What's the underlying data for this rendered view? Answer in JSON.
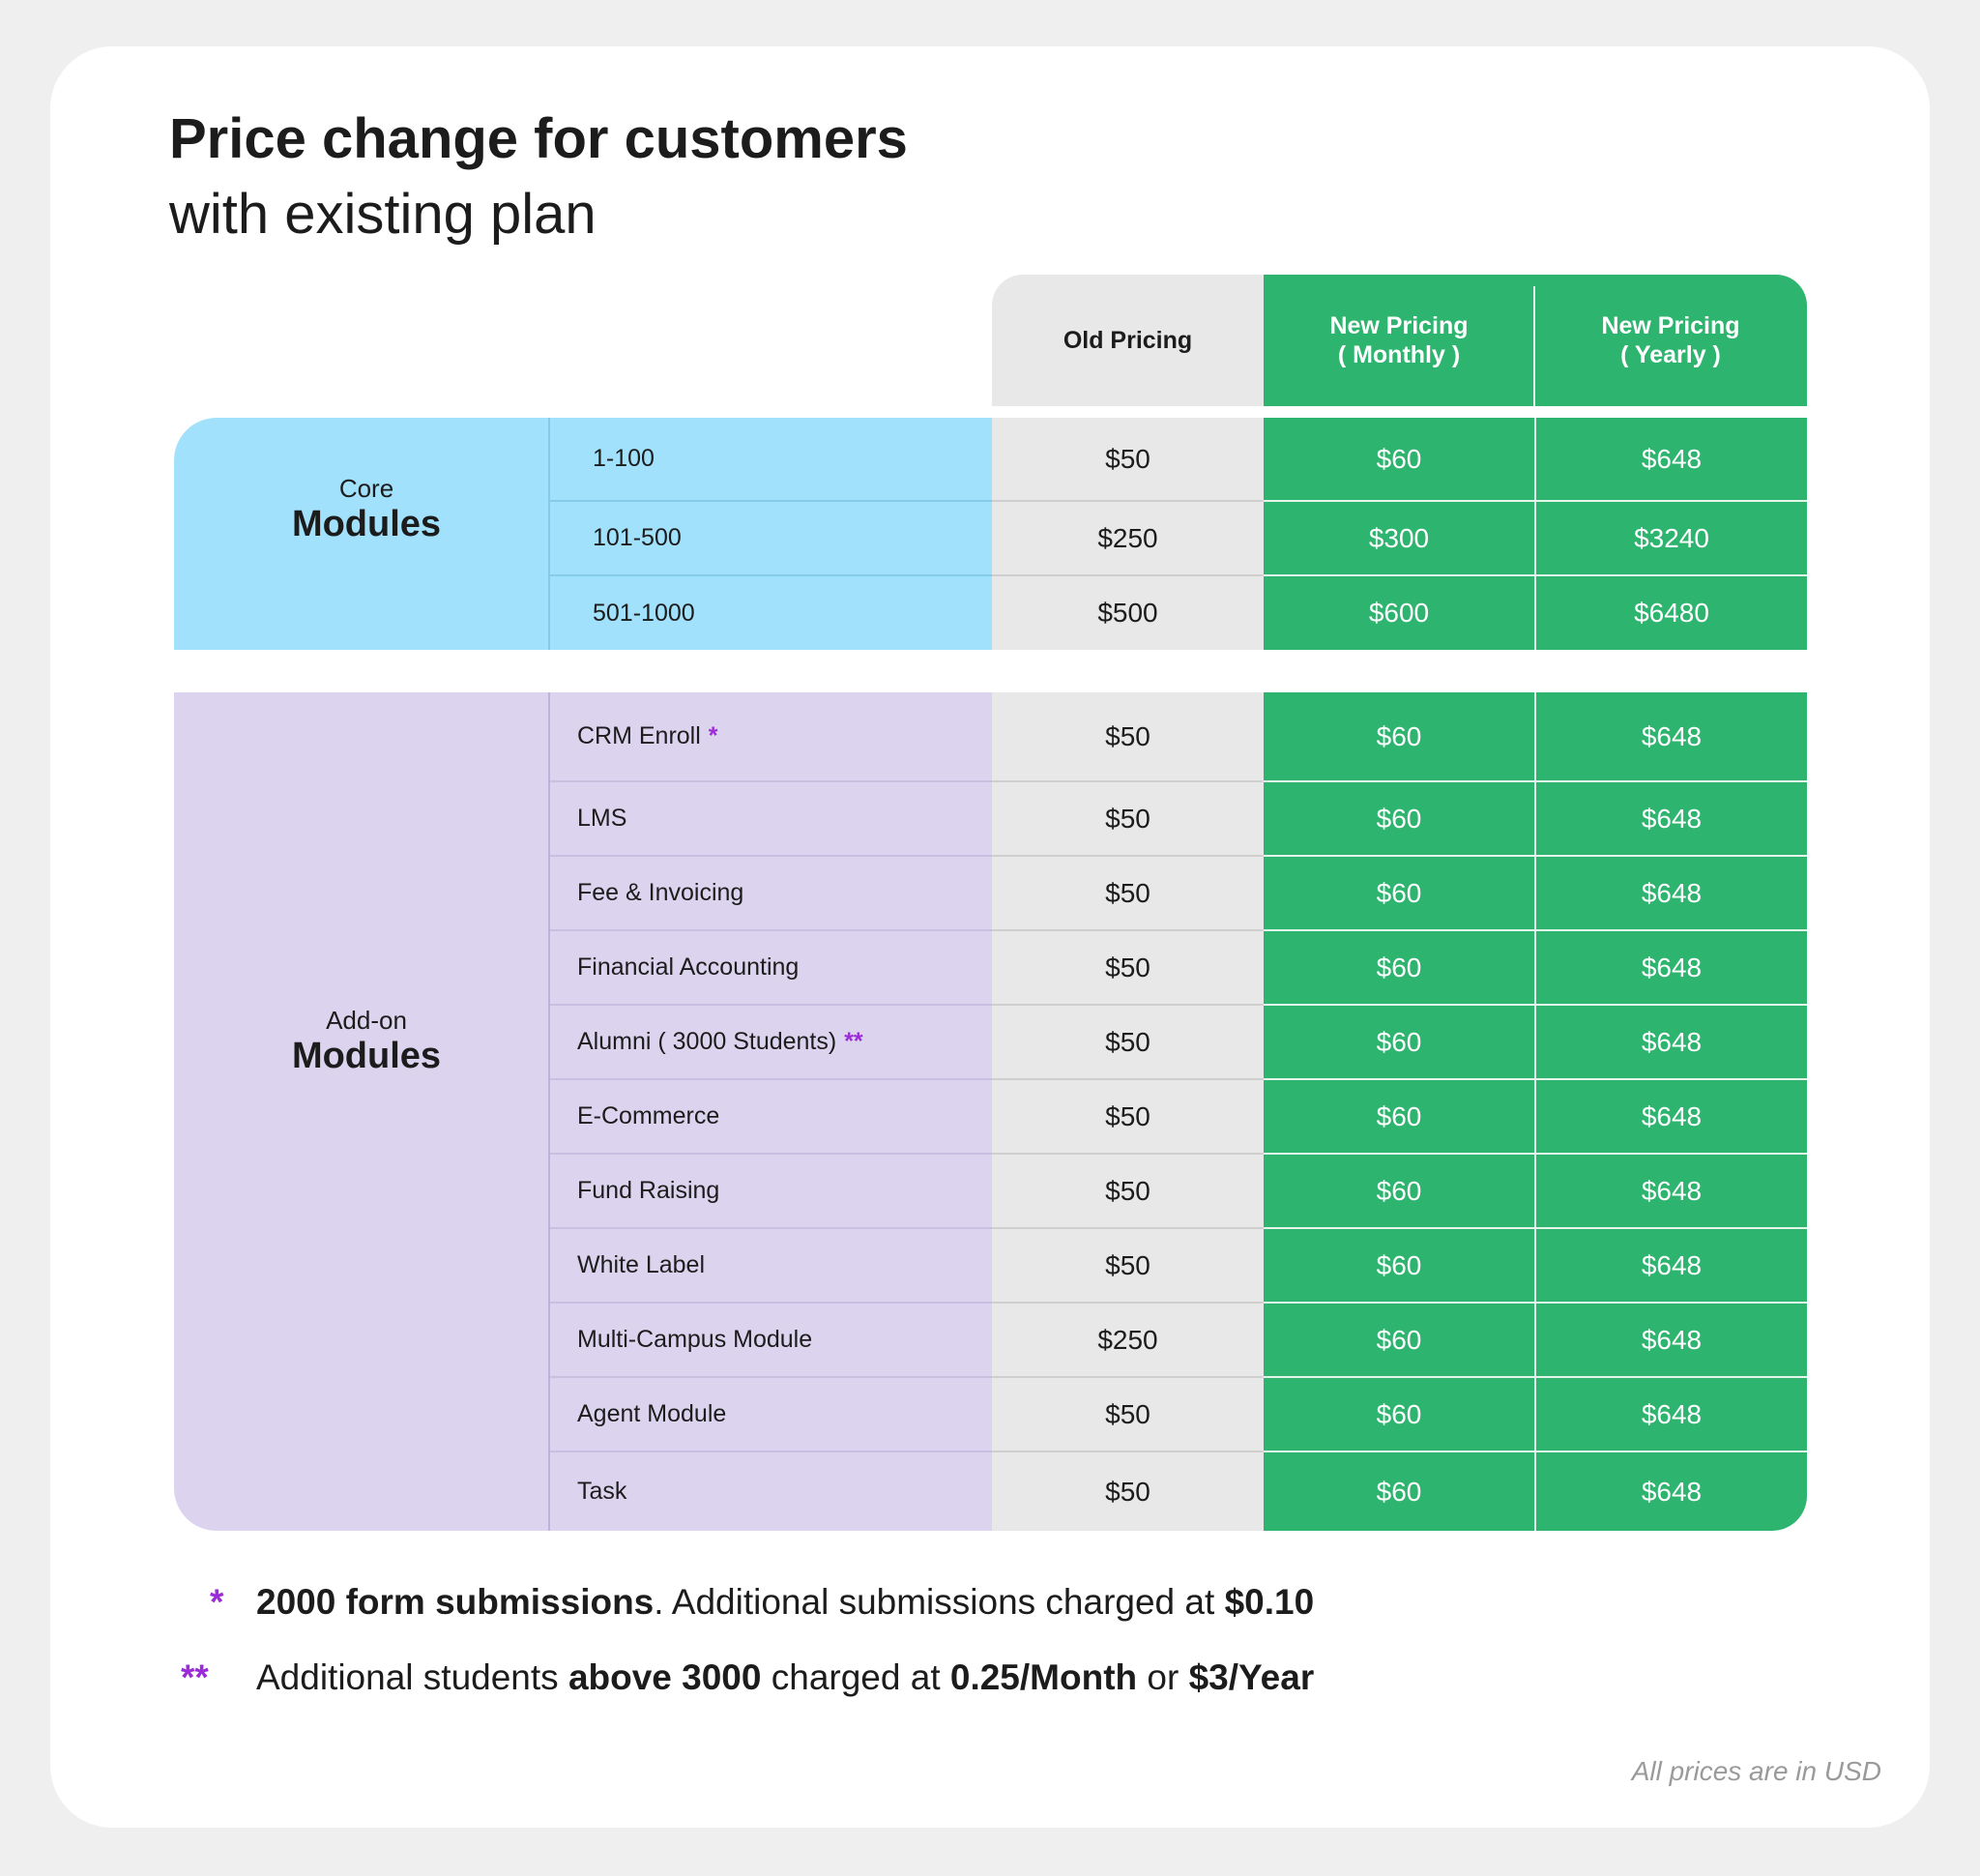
{
  "title": {
    "line1": "Price change for customers",
    "line2": "with existing plan"
  },
  "columns": {
    "old": "Old Pricing",
    "monthly_line1": "New Pricing",
    "monthly_line2": "( Monthly )",
    "yearly_line1": "New Pricing",
    "yearly_line2": "( Yearly )"
  },
  "core": {
    "label_small": "Core",
    "label_big": "Modules",
    "rows": [
      {
        "name": "1-100",
        "old": "$50",
        "monthly": "$60",
        "yearly": "$648"
      },
      {
        "name": "101-500",
        "old": "$250",
        "monthly": "$300",
        "yearly": "$3240"
      },
      {
        "name": "501-1000",
        "old": "$500",
        "monthly": "$600",
        "yearly": "$6480"
      }
    ]
  },
  "addon": {
    "label_small": "Add-on",
    "label_big": "Modules",
    "rows": [
      {
        "name": "CRM Enroll",
        "mark": "*",
        "old": "$50",
        "monthly": "$60",
        "yearly": "$648"
      },
      {
        "name": "LMS",
        "mark": "",
        "old": "$50",
        "monthly": "$60",
        "yearly": "$648"
      },
      {
        "name": "Fee & Invoicing",
        "mark": "",
        "old": "$50",
        "monthly": "$60",
        "yearly": "$648"
      },
      {
        "name": "Financial Accounting",
        "mark": "",
        "old": "$50",
        "monthly": "$60",
        "yearly": "$648"
      },
      {
        "name": "Alumni ( 3000 Students)",
        "mark": "**",
        "old": "$50",
        "monthly": "$60",
        "yearly": "$648"
      },
      {
        "name": "E-Commerce",
        "mark": "",
        "old": "$50",
        "monthly": "$60",
        "yearly": "$648"
      },
      {
        "name": "Fund Raising",
        "mark": "",
        "old": "$50",
        "monthly": "$60",
        "yearly": "$648"
      },
      {
        "name": "White Label",
        "mark": "",
        "old": "$50",
        "monthly": "$60",
        "yearly": "$648"
      },
      {
        "name": "Multi-Campus Module",
        "mark": "",
        "old": "$250",
        "monthly": "$60",
        "yearly": "$648"
      },
      {
        "name": "Agent Module",
        "mark": "",
        "old": "$50",
        "monthly": "$60",
        "yearly": "$648"
      },
      {
        "name": "Task",
        "mark": "",
        "old": "$50",
        "monthly": "$60",
        "yearly": "$648"
      }
    ]
  },
  "notes": {
    "n1_mark": "*",
    "n1_bold": "2000 form submissions",
    "n1_text": ". Additional submissions charged at ",
    "n1_price": "$0.10",
    "n2_mark": "**",
    "n2_t1": "Additional students ",
    "n2_b1": "above 3000",
    "n2_t2": " charged at ",
    "n2_b2": "0.25/Month",
    "n2_t3": " or ",
    "n2_b3": "$3/Year"
  },
  "footer": "All prices are in USD",
  "colors": {
    "core_bg": "#a1e1fb",
    "addon_bg": "#dcd4ee",
    "new_pricing_green": "#2db46e",
    "old_pricing_gray": "#e8e8e8",
    "asterisk_purple": "#9b2bd8"
  }
}
